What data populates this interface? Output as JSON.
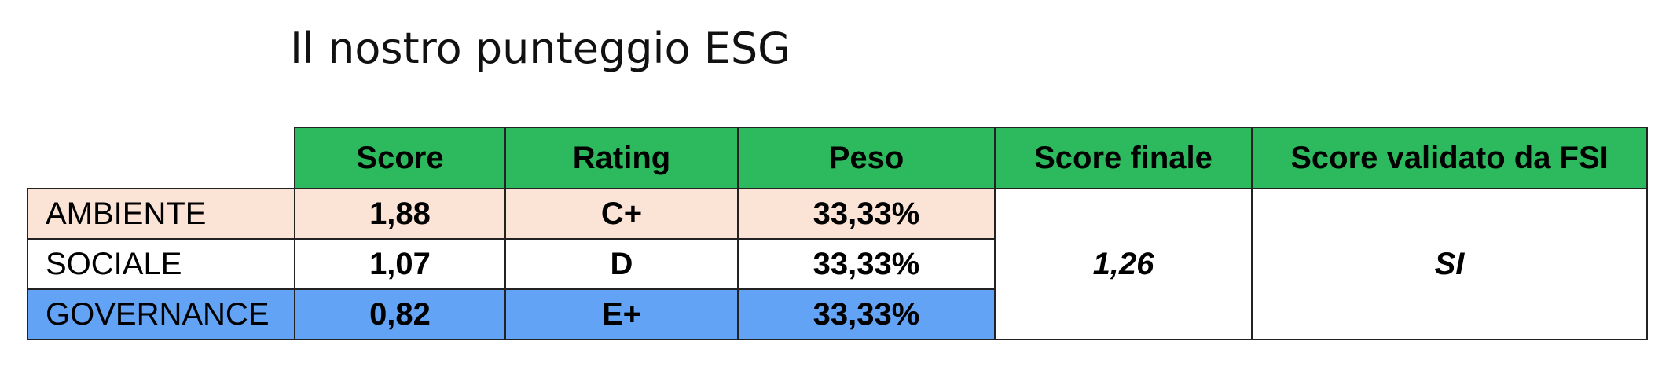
{
  "header": {
    "title": "Il nostro punteggio ESG"
  },
  "table": {
    "columns": [
      "Score",
      "Rating",
      "Peso",
      "Score finale",
      "Score validato da FSI"
    ],
    "rows": [
      [
        "AMBIENTE",
        "1,88",
        "C+",
        "33,33%"
      ],
      [
        "SOCIALE",
        "1,07",
        "D",
        "33,33%"
      ],
      [
        "GOVERNANCE",
        "0,82",
        "E+",
        "33,33%"
      ]
    ],
    "score_finale": "1,26",
    "score_validato": "SI"
  }
}
